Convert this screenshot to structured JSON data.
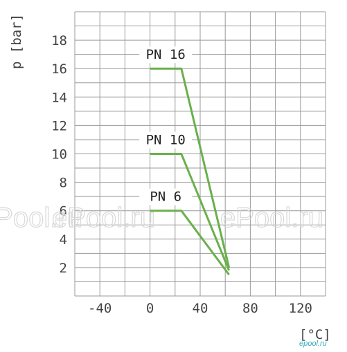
{
  "chart_data": {
    "type": "line",
    "xlabel": "[°C]",
    "ylabel": "p [bar]",
    "xlim": [
      -60,
      140
    ],
    "ylim": [
      0,
      20
    ],
    "x_ticks": [
      -40,
      0,
      40,
      80,
      120
    ],
    "x_tick_labels": [
      "-40",
      "0",
      "40",
      "80",
      "120"
    ],
    "y_ticks": [
      2,
      4,
      6,
      8,
      10,
      12,
      14,
      16,
      18
    ],
    "y_tick_labels": [
      "2",
      "4",
      "6",
      "8",
      "10",
      "12",
      "14",
      "16",
      "18"
    ],
    "grid": true,
    "series": [
      {
        "name": "PN 16",
        "x": [
          0,
          25,
          63
        ],
        "y": [
          16,
          16,
          2
        ]
      },
      {
        "name": "PN 10",
        "x": [
          0,
          25,
          63
        ],
        "y": [
          10,
          10,
          1.8
        ]
      },
      {
        "name": "PN 6",
        "x": [
          0,
          25,
          63
        ],
        "y": [
          6,
          6,
          1.5
        ]
      }
    ],
    "line_color": "#6ab04c"
  },
  "watermark": {
    "text": "ePool.ru"
  },
  "logo": {
    "text": "epool.ru"
  }
}
